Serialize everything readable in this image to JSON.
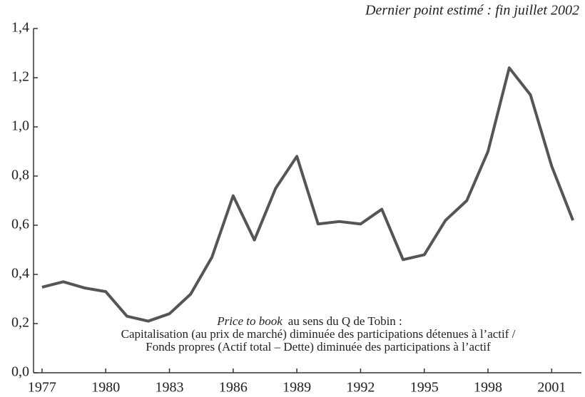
{
  "chart_data": {
    "type": "line",
    "annotation": "Dernier point estimé : fin juillet 2002",
    "note": [
      "Price to book",
      "au sens du Q de Tobin :",
      "Capitalisation (au prix de marché) diminuée des participations détenues à l’actif /",
      "Fonds propres (Actif total – Dette) diminuée des participations à l’actif"
    ],
    "x": [
      1977,
      1978,
      1979,
      1980,
      1981,
      1982,
      1983,
      1984,
      1985,
      1986,
      1987,
      1988,
      1989,
      1990,
      1991,
      1992,
      1993,
      1994,
      1995,
      1996,
      1997,
      1998,
      1999,
      2000,
      2001,
      2002
    ],
    "series": [
      {
        "color": "#555555",
        "values": [
          0.348,
          0.37,
          0.345,
          0.33,
          0.23,
          0.21,
          0.24,
          0.32,
          0.47,
          0.72,
          0.54,
          0.75,
          0.88,
          0.605,
          0.615,
          0.605,
          0.665,
          0.46,
          0.48,
          0.62,
          0.7,
          0.9,
          1.24,
          1.13,
          0.84,
          0.62
        ]
      }
    ],
    "xlim": [
      1976.6,
      2002.4
    ],
    "xticks": [
      1977,
      1980,
      1983,
      1986,
      1989,
      1992,
      1995,
      1998,
      2001
    ],
    "ylim": [
      0,
      1.4
    ],
    "yticks": [
      {
        "value": 0,
        "label": "0,0"
      },
      {
        "value": 0.2,
        "label": "0,2"
      },
      {
        "value": 0.4,
        "label": "0,4"
      },
      {
        "value": 0.6,
        "label": "0,6"
      },
      {
        "value": 0.8,
        "label": "0,8"
      },
      {
        "value": 1.0,
        "label": "1,0"
      },
      {
        "value": 1.2,
        "label": "1,2"
      },
      {
        "value": 1.4,
        "label": "1,4"
      }
    ]
  }
}
